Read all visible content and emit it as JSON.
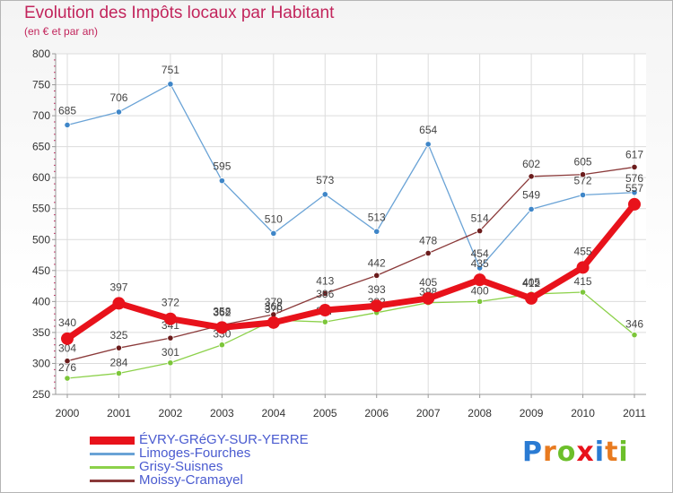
{
  "title": "Evolution des Impôts locaux par Habitant",
  "subtitle": "(en € et par an)",
  "logo_text": "Proxiti",
  "colors": {
    "title": "#c2255c",
    "evry": "#e8121b",
    "limoges": "#6aa3d6",
    "grisy": "#8cd14a",
    "moissy": "#8b3a3a",
    "grid": "#dcdcdc",
    "legend_text": "#4a5bd0"
  },
  "chart_data": {
    "type": "line",
    "title": "Evolution des Impôts locaux par Habitant",
    "subtitle": "(en € et par an)",
    "xlabel": "",
    "ylabel": "",
    "ylim": [
      250,
      800
    ],
    "yticks": [
      250,
      300,
      350,
      400,
      450,
      500,
      550,
      600,
      650,
      700,
      750,
      800
    ],
    "categories": [
      "2000",
      "2001",
      "2002",
      "2003",
      "2004",
      "2005",
      "2006",
      "2007",
      "2008",
      "2009",
      "2010",
      "2011"
    ],
    "series": [
      {
        "name": "Limoges-Fourches",
        "key": "limoges",
        "values": [
          685,
          706,
          751,
          595,
          510,
          573,
          513,
          654,
          454,
          549,
          572,
          576
        ]
      },
      {
        "name": "Grisy-Suisnes",
        "key": "grisy",
        "values": [
          276,
          284,
          301,
          330,
          370,
          367,
          382,
          398,
          400,
          412,
          415,
          346
        ]
      },
      {
        "name": "Moissy-Cramayel",
        "key": "moissy",
        "values": [
          304,
          325,
          341,
          362,
          379,
          413,
          442,
          478,
          514,
          602,
          605,
          617
        ]
      },
      {
        "name": "ÉVRY-GRéGY-SUR-YERRE",
        "key": "evry",
        "values": [
          340,
          397,
          372,
          358,
          366,
          386,
          393,
          405,
          435,
          405,
          455,
          557
        ]
      }
    ],
    "legend": [
      "ÉVRY-GRéGY-SUR-YERRE",
      "Limoges-Fourches",
      "Grisy-Suisnes",
      "Moissy-Cramayel"
    ]
  }
}
